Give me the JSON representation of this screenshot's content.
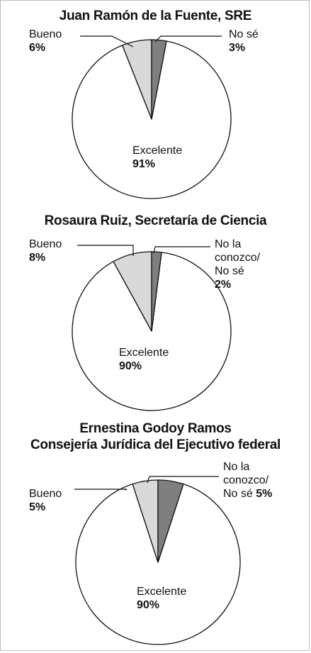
{
  "colors": {
    "excelente": "#ffffff",
    "bueno": "#d9d9d9",
    "nose": "#7f7f7f",
    "stroke": "#111111"
  },
  "chart_data": [
    {
      "type": "pie",
      "title": "Juan Ramón de la Fuente, SRE",
      "slices": [
        {
          "name": "Excelente",
          "value": 91,
          "pct_label": "91%"
        },
        {
          "name": "Bueno",
          "value": 6,
          "pct_label": "6%"
        },
        {
          "name": "No sé",
          "value": 3,
          "pct_label": "3%"
        }
      ]
    },
    {
      "type": "pie",
      "title": "Rosaura Ruiz, Secretaría de Ciencia",
      "slices": [
        {
          "name": "Excelente",
          "value": 90,
          "pct_label": "90%"
        },
        {
          "name": "Bueno",
          "value": 8,
          "pct_label": "8%"
        },
        {
          "name_lines": [
            "No la",
            "conozco/",
            "No sé"
          ],
          "value": 2,
          "pct_label": "2%"
        }
      ]
    },
    {
      "type": "pie",
      "title_lines": [
        "Ernestina Godoy Ramos",
        "Consejería Jurídica del Ejecutivo federal"
      ],
      "slices": [
        {
          "name": "Excelente",
          "value": 90,
          "pct_label": "90%"
        },
        {
          "name": "Bueno",
          "value": 5,
          "pct_label": "5%"
        },
        {
          "name_lines": [
            "No la",
            "conozco/",
            "No sé"
          ],
          "value": 5,
          "pct_label": "5%"
        }
      ]
    }
  ]
}
